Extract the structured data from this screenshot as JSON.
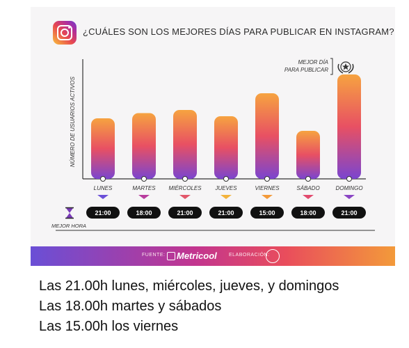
{
  "title": "¿CUÁLES SON LOS MEJORES DÍAS PARA PUBLICAR EN INSTAGRAM?",
  "best_day_label_1": "MEJOR DÍA",
  "best_day_label_2": "PARA PUBLICAR",
  "best_hour_label": "MEJOR HORA",
  "footer": {
    "source_label": "FUENTE:",
    "brand": "Metricool",
    "made_by_label": "ELABORACIÓN:"
  },
  "captions": [
    "Las 21.00h lunes, miércoles, jueves, y domingos",
    "Las 18.00h martes y sábados",
    "Las 15.00h los viernes"
  ],
  "chart_data": {
    "type": "bar",
    "title": "¿CUÁLES SON LOS MEJORES DÍAS PARA PUBLICAR EN INSTAGRAM?",
    "ylabel": "NÚMERO DE USUARIOS ACTIVOS",
    "xlabel": "",
    "categories": [
      "LUNES",
      "MARTES",
      "MIÉRCOLES",
      "JUEVES",
      "VIERNES",
      "SÁBADO",
      "DOMINGO"
    ],
    "values": [
      58,
      63,
      66,
      60,
      82,
      46,
      100
    ],
    "ylim": [
      0,
      100
    ],
    "best_hours": [
      "21:00",
      "18:00",
      "21:00",
      "21:00",
      "15:00",
      "18:00",
      "21:00"
    ],
    "highlight": "DOMINGO",
    "grid": false,
    "arrow_colors": [
      "#6b4fd8",
      "#b83c9d",
      "#e2576a",
      "#f3b33c",
      "#f39a3a",
      "#e24a6e",
      "#8a45c4"
    ]
  }
}
